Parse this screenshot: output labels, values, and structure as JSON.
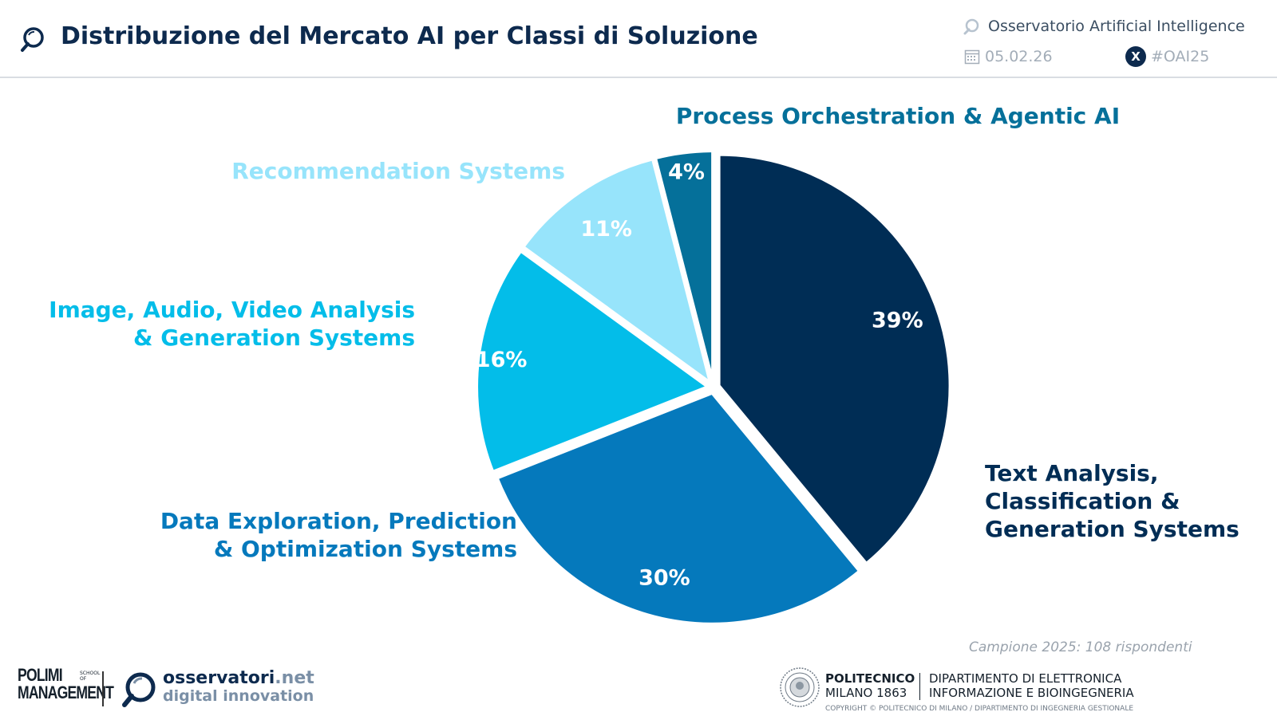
{
  "header": {
    "title": "Distribuzione del Mercato AI per Classi di Soluzione",
    "observatory": "Osservatorio Artificial Intelligence",
    "date": "05.02.26",
    "hashtag": "#OAI25",
    "x_badge": "X"
  },
  "chart_data": {
    "type": "pie",
    "title": "",
    "unit": "%",
    "slices": [
      {
        "label_lines": [
          "Text Analysis,",
          "Classification &",
          "Generation Systems"
        ],
        "value": 39,
        "value_label": "39%",
        "color": "#002d55"
      },
      {
        "label_lines": [
          "Data Exploration, Prediction",
          "& Optimization Systems"
        ],
        "value": 30,
        "value_label": "30%",
        "color": "#0579bc"
      },
      {
        "label_lines": [
          "Image, Audio, Video Analysis",
          "& Generation Systems"
        ],
        "value": 16,
        "value_label": "16%",
        "color": "#03bde9"
      },
      {
        "label_lines": [
          "Recommendation Systems"
        ],
        "value": 11,
        "value_label": "11%",
        "color": "#97e4fb"
      },
      {
        "label_lines": [
          "Process Orchestration & Agentic AI"
        ],
        "value": 4,
        "value_label": "4%",
        "color": "#05709a"
      }
    ],
    "label_colors": [
      "#002d55",
      "#0579bc",
      "#03bde9",
      "#97e4fb",
      "#05709a"
    ]
  },
  "footer": {
    "sample_note": "Campione 2025: 108 rispondenti",
    "polimi_line1": "POLIMI",
    "polimi_line2": "MANAGEMENT",
    "polimi_school": "SCHOOL OF",
    "osservatori_main": "osservatori",
    "osservatori_tld": ".net",
    "osservatori_sub": "digital innovation",
    "politecnico_line1": "POLITECNICO",
    "politecnico_line2": "MILANO 1863",
    "dept_line1": "DIPARTIMENTO DI ELETTRONICA",
    "dept_line2": "INFORMAZIONE E BIOINGEGNERIA",
    "copyright": "COPYRIGHT © POLITECNICO DI MILANO / DIPARTIMENTO DI INGEGNERIA GESTIONALE"
  },
  "icons": {
    "title": "magnifier-icon",
    "observatory": "observatory-logo-icon",
    "date": "calendar-icon",
    "social": "x-logo-icon"
  }
}
